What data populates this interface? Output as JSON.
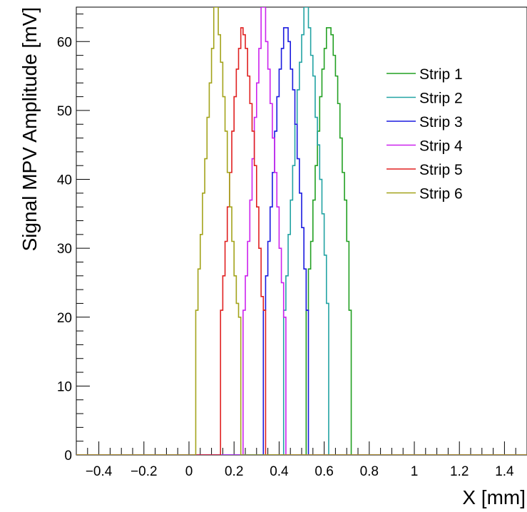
{
  "chart_data": {
    "type": "line",
    "title": "",
    "xlabel": "X [mm]",
    "ylabel": "Signal MPV Amplitude [mV]",
    "xlim": [
      -0.5,
      1.5
    ],
    "ylim": [
      0,
      65
    ],
    "xticks": [
      -0.4,
      -0.2,
      0,
      0.2,
      0.4,
      0.6,
      0.8,
      1,
      1.2,
      1.4
    ],
    "xtick_labels": [
      "−0.4",
      "−0.2",
      "0",
      "0.2",
      "0.4",
      "0.6",
      "0.8",
      "1",
      "1.2",
      "1.4"
    ],
    "yticks": [
      0,
      10,
      20,
      30,
      40,
      50,
      60
    ],
    "ytick_labels": [
      "0",
      "10",
      "20",
      "30",
      "40",
      "50",
      "60"
    ],
    "grid": false,
    "legend_position": "top-right",
    "step_style": "histogram",
    "bin_width": 0.01,
    "series": [
      {
        "name": "Strip 1",
        "color": "#22a022",
        "x_start": 0.52,
        "x_end": 0.72,
        "values": [
          21,
          27,
          31,
          37,
          42,
          47,
          52,
          56,
          59,
          62,
          62,
          61,
          58,
          55,
          51,
          46,
          41,
          37,
          31,
          21
        ]
      },
      {
        "name": "Strip 2",
        "color": "#22a3a3",
        "x_start": 0.42,
        "x_end": 0.62,
        "values": [
          21,
          26,
          32,
          37,
          42,
          48,
          53,
          57,
          61,
          65,
          65,
          62,
          58,
          55,
          49,
          45,
          40,
          35,
          29,
          22
        ]
      },
      {
        "name": "Strip 3",
        "color": "#1a1adf",
        "x_start": 0.33,
        "x_end": 0.53,
        "values": [
          21,
          26,
          31,
          36,
          41,
          47,
          52,
          56,
          59,
          62,
          62,
          60,
          56,
          53,
          48,
          43,
          38,
          33,
          27,
          21
        ]
      },
      {
        "name": "Strip 4",
        "color": "#cc22ee",
        "x_start": 0.24,
        "x_end": 0.43,
        "values": [
          21,
          26,
          31,
          37,
          43,
          49,
          54,
          59,
          65,
          65,
          60,
          56,
          51,
          46,
          41,
          36,
          30,
          25,
          20
        ]
      },
      {
        "name": "Strip 5",
        "color": "#e02020",
        "x_start": 0.14,
        "x_end": 0.34,
        "values": [
          21,
          26,
          31,
          36,
          41,
          47,
          52,
          56,
          59,
          62,
          61,
          59,
          55,
          51,
          47,
          42,
          36,
          30,
          23,
          21
        ]
      },
      {
        "name": "Strip 6",
        "color": "#a3a31a",
        "x_start": 0.03,
        "x_end": 0.23,
        "values": [
          21,
          27,
          32,
          38,
          43,
          49,
          54,
          59,
          65,
          65,
          61,
          57,
          52,
          47,
          41,
          36,
          31,
          26,
          22,
          20
        ]
      }
    ]
  }
}
